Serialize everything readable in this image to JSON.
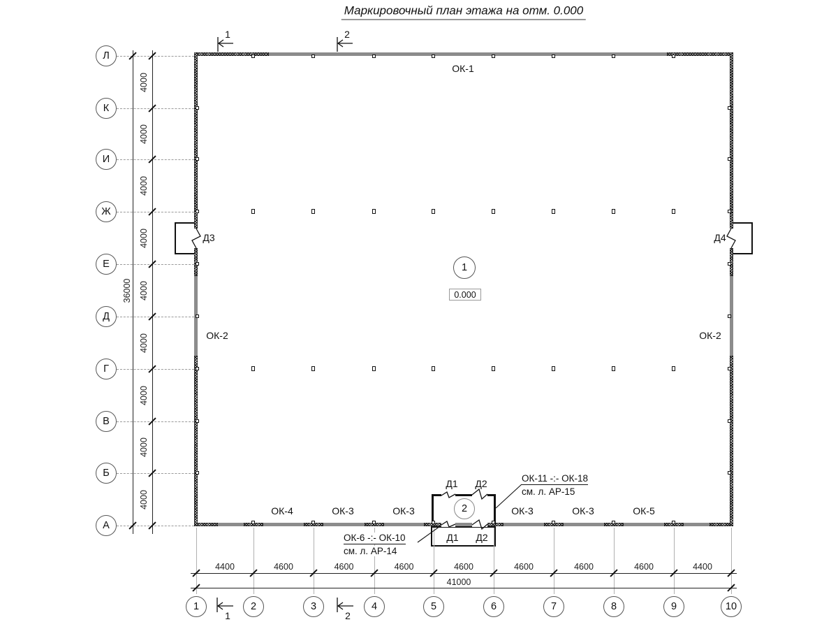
{
  "title": "Маркировочный план этажа на отм. 0.000",
  "grid": {
    "rows": [
      "Л",
      "К",
      "И",
      "Ж",
      "Е",
      "Д",
      "Г",
      "В",
      "Б",
      "А"
    ],
    "cols": [
      "1",
      "2",
      "3",
      "4",
      "5",
      "6",
      "7",
      "8",
      "9",
      "10"
    ]
  },
  "dimensions": {
    "row_spans": [
      "4000",
      "4000",
      "4000",
      "4000",
      "4000",
      "4000",
      "4000",
      "4000",
      "4000"
    ],
    "row_total": "36000",
    "col_spans": [
      "4400",
      "4600",
      "4600",
      "4600",
      "4600",
      "4600",
      "4600",
      "4600",
      "4400"
    ],
    "col_total": "41000"
  },
  "rooms": {
    "main_number": "1",
    "main_elevation": "0.000",
    "vestibule_number": "2"
  },
  "windows": {
    "top": "ОК-1",
    "left": "ОК-2",
    "right": "ОК-2",
    "bottom": [
      "ОК-4",
      "ОК-3",
      "ОК-3",
      "ОК-3",
      "ОК-3",
      "ОК-5"
    ]
  },
  "doors": {
    "left": "Д3",
    "right": "Д4",
    "vestibule_top": [
      "Д1",
      "Д2"
    ],
    "vestibule_bottom": [
      "Д1",
      "Д2"
    ]
  },
  "notes": {
    "right": {
      "line1": "ОК-11 -:- ОК-18",
      "line2": "см. л. АР-15"
    },
    "left": {
      "line1": "ОК-6 -:- ОК-10",
      "line2": "см. л. АР-14"
    }
  },
  "section_marks": {
    "top": [
      "1",
      "2"
    ],
    "bottom": [
      "1",
      "2"
    ]
  }
}
